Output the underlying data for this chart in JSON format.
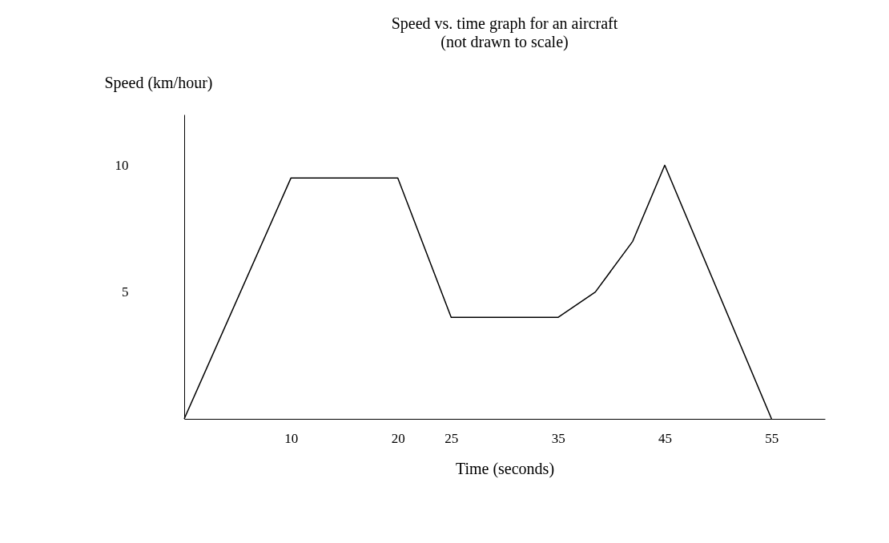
{
  "chart_data": {
    "type": "line",
    "title": "Speed vs. time graph for an aircraft",
    "subtitle": "(not drawn to scale)",
    "xlabel": "Time (seconds)",
    "ylabel": "Speed (km/hour)",
    "x": [
      0,
      10,
      20,
      25,
      35,
      38.5,
      42,
      45,
      55
    ],
    "series": [
      {
        "color": "#000000",
        "values": [
          0,
          9.5,
          9.5,
          4,
          4,
          5,
          7,
          10,
          0
        ]
      }
    ],
    "xlim": [
      0,
      60
    ],
    "ylim": [
      0,
      12
    ],
    "xticks": [
      10,
      20,
      25,
      35,
      45,
      55
    ],
    "yticks": [
      5,
      10
    ]
  }
}
